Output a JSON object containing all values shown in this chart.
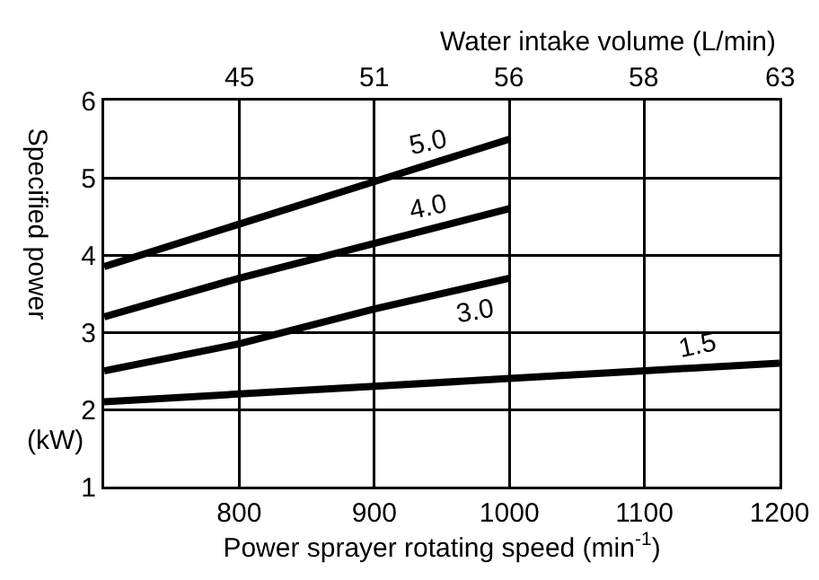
{
  "chart_data": {
    "type": "line",
    "xlabel": "Power sprayer rotating speed (min$^{-1}$)",
    "ylabel": "Specified power",
    "x2label": "Water intake volume (L/min)",
    "annotations": [
      "(kW)",
      "45",
      "51",
      "56",
      "58",
      "63"
    ],
    "xlim": [
      700,
      1200
    ],
    "xticks": [
      800,
      900,
      1000,
      1100,
      1200
    ],
    "ylim": [
      1,
      6
    ],
    "yticks": [
      1,
      2,
      3,
      4,
      5,
      6
    ],
    "grid": true,
    "legend": false,
    "marker": "none",
    "line_style": "solid",
    "series": [
      {
        "name": "5.0",
        "color": "#000000",
        "x": [
          700,
          800,
          900,
          1000
        ],
        "values": [
          3.85,
          4.4,
          4.95,
          5.5
        ]
      },
      {
        "name": "4.0",
        "color": "#000000",
        "x": [
          700,
          800,
          900,
          1000
        ],
        "values": [
          3.2,
          3.7,
          4.15,
          4.6
        ]
      },
      {
        "name": "3.0",
        "color": "#000000",
        "x": [
          700,
          800,
          900,
          1000
        ],
        "values": [
          2.5,
          2.85,
          3.3,
          3.7
        ]
      },
      {
        "name": "1.5",
        "color": "#000000",
        "x": [
          700,
          800,
          900,
          1000,
          1100,
          1200
        ],
        "values": [
          2.1,
          2.2,
          2.3,
          2.4,
          2.5,
          2.6
        ]
      }
    ]
  }
}
